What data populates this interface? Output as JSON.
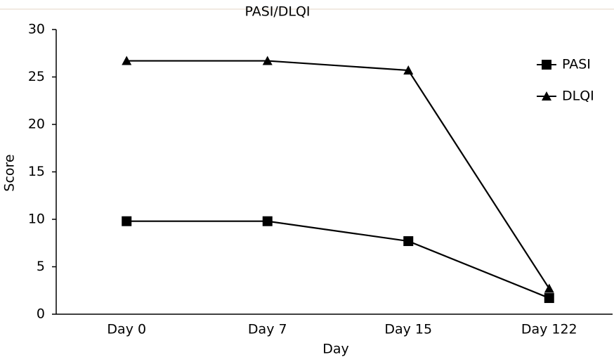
{
  "chart_data": {
    "type": "line",
    "title": "PASI/DLQI",
    "xlabel": "Day",
    "ylabel": "Score",
    "categories": [
      "Day 0",
      "Day 7",
      "Day 15",
      "Day 122"
    ],
    "series": [
      {
        "name": "PASI",
        "color": "#000000",
        "marker": "square",
        "values": [
          9.8,
          9.8,
          7.7,
          1.7
        ]
      },
      {
        "name": "DLQI",
        "color": "#000000",
        "marker": "triangle",
        "values": [
          26.7,
          26.7,
          25.7,
          2.7
        ]
      }
    ],
    "ylim": [
      0,
      30
    ],
    "yticks": [
      0,
      5,
      10,
      15,
      20,
      25,
      30
    ],
    "grid": false,
    "legend": "top-right"
  }
}
